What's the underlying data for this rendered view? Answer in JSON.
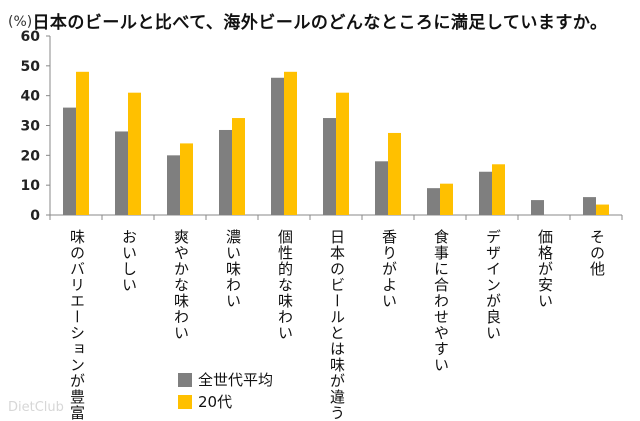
{
  "chart_data": {
    "type": "bar",
    "title": "日本のビールと比べて、海外ビールのどんなところに満足していますか。",
    "unit_label": "(%)",
    "ylim": [
      0,
      60
    ],
    "yticks": [
      0,
      10,
      20,
      30,
      40,
      50,
      60
    ],
    "categories": [
      "味のバリエーションが豊富",
      "おいしい",
      "爽やかな味わい",
      "濃い味わい",
      "個性的な味わい",
      "日本のビールとは味が違う",
      "香りがよい",
      "食事に合わせやすい",
      "デザインが良い",
      "価格が安い",
      "その他"
    ],
    "series": [
      {
        "name": "全世代平均",
        "color": "#7f7f7f",
        "values": [
          36,
          28,
          20,
          28.5,
          46,
          32.5,
          18,
          9,
          14.5,
          5,
          6
        ]
      },
      {
        "name": "20代",
        "color": "#ffc000",
        "values": [
          48,
          41,
          24,
          32.5,
          48,
          41,
          27.5,
          10.5,
          17,
          0,
          3.5
        ]
      }
    ]
  },
  "watermark": "DietClub"
}
